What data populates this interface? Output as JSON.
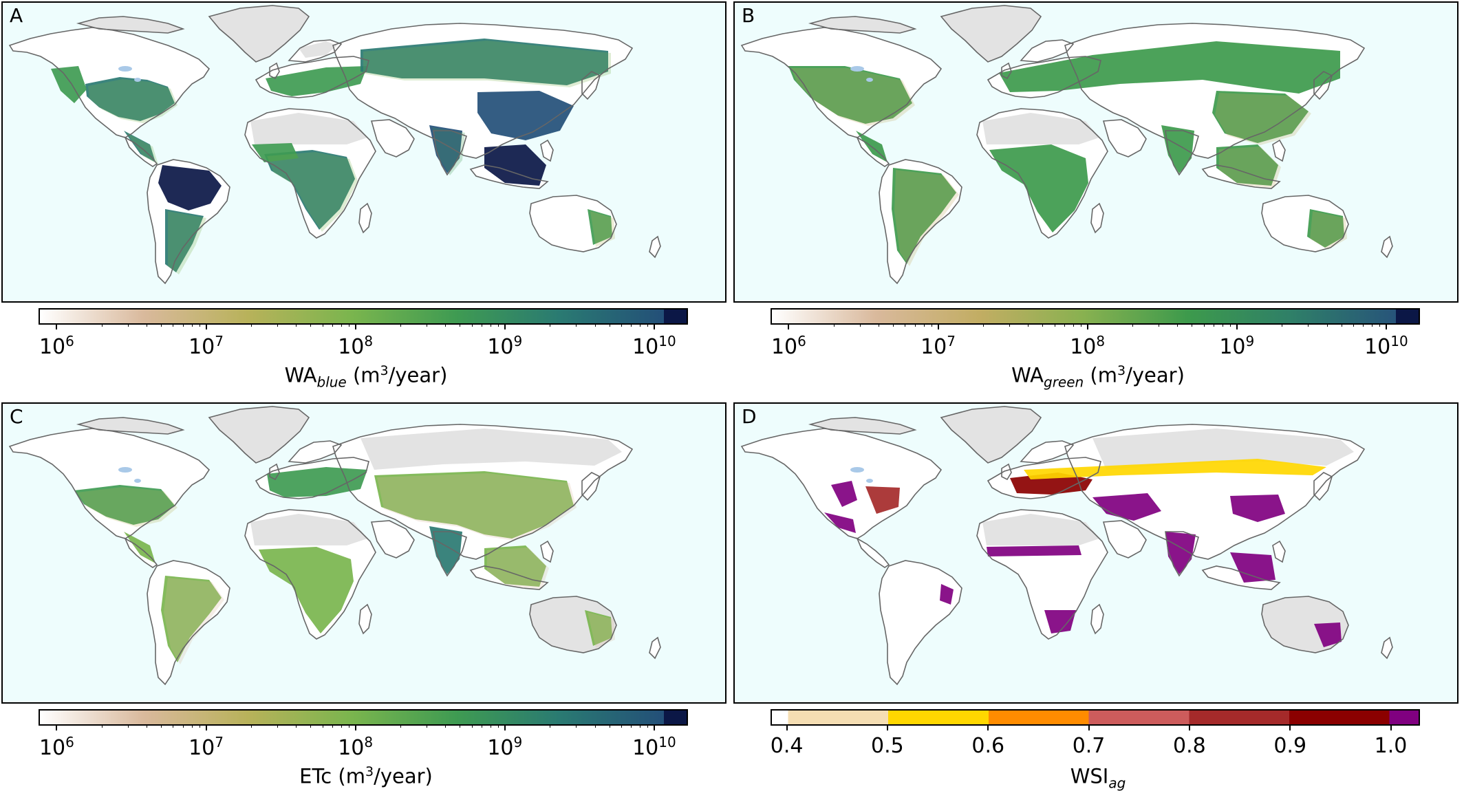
{
  "panels": [
    {
      "letter": "A",
      "title_main": "WA",
      "title_sub": "blue",
      "title_unit_pre": " (m",
      "title_sup": "3",
      "title_unit_post": "/year)",
      "palette": "blue"
    },
    {
      "letter": "B",
      "title_main": "WA",
      "title_sub": "green",
      "title_unit_pre": " (m",
      "title_sup": "3",
      "title_unit_post": "/year)",
      "palette": "green"
    },
    {
      "letter": "C",
      "title_main": "ETc",
      "title_sub": "",
      "title_unit_pre": " (m",
      "title_sup": "3",
      "title_unit_post": "/year)",
      "palette": "etc"
    },
    {
      "letter": "D",
      "title_main": "WSI",
      "title_sub": "ag",
      "title_unit_pre": "",
      "title_sup": "",
      "title_unit_post": "",
      "palette": "wsi"
    }
  ],
  "log_ticks": [
    {
      "base": "10",
      "exp": "6"
    },
    {
      "base": "10",
      "exp": "7"
    },
    {
      "base": "10",
      "exp": "8"
    },
    {
      "base": "10",
      "exp": "9"
    },
    {
      "base": "10",
      "exp": "10"
    }
  ],
  "wsi_ticks": [
    "0.4",
    "0.5",
    "0.6",
    "0.7",
    "0.8",
    "0.9",
    "1.0"
  ],
  "colors": {
    "ocean": "#eefdfd",
    "land_masked": "#e3e3e3",
    "coast": "#666666",
    "blue_gradient": [
      "#ffffff",
      "#d9b99c",
      "#b8b25a",
      "#7ab54e",
      "#3f9b52",
      "#2a7a72",
      "#234f78",
      "#0b1746"
    ],
    "green_gradient": [
      "#ffffff",
      "#d9b99c",
      "#c2ad63",
      "#88b150",
      "#3d9a4c",
      "#2f7f68",
      "#27547a",
      "#0b1746"
    ],
    "wsi_bins": [
      "#ffffff",
      "#f5deb3",
      "#ffd700",
      "#ff8c00",
      "#cd5c5c",
      "#a52a2a",
      "#8b0000",
      "#800080"
    ]
  }
}
